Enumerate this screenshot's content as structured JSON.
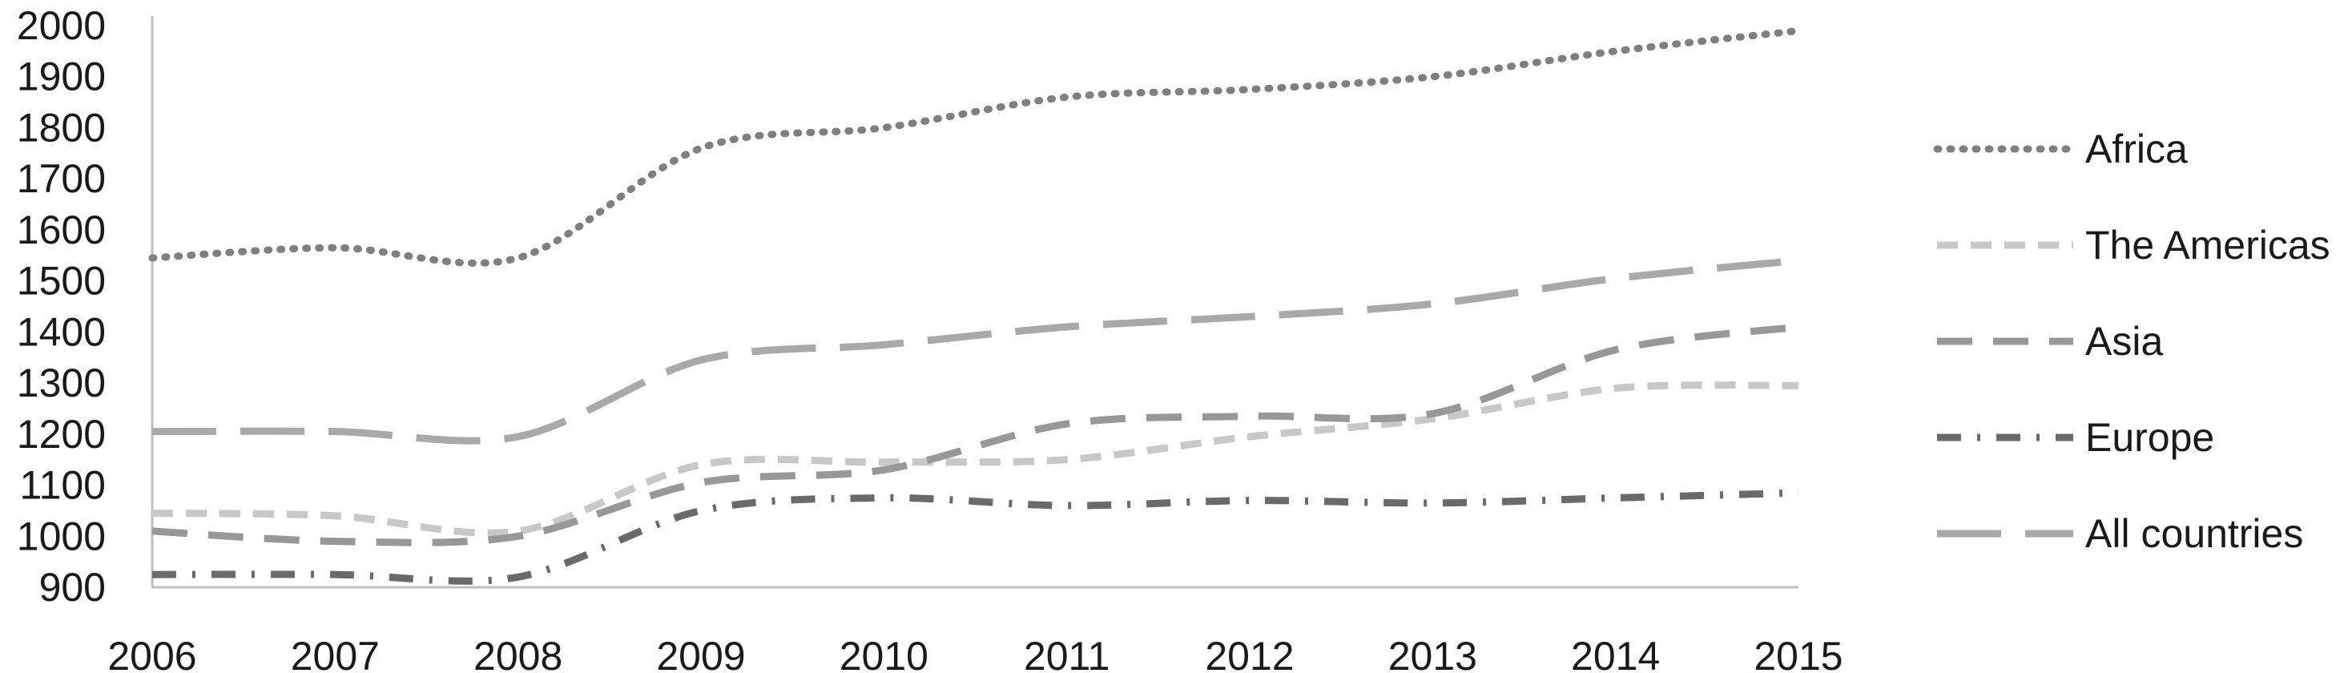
{
  "chart_data": {
    "type": "line",
    "title": "",
    "xlabel": "",
    "ylabel": "",
    "categories": [
      "2006",
      "2007",
      "2008",
      "2009",
      "2010",
      "2011",
      "2012",
      "2013",
      "2014",
      "2015"
    ],
    "ylim": [
      900,
      2000
    ],
    "yticks": [
      "900",
      "1000",
      "1100",
      "1200",
      "1300",
      "1400",
      "1500",
      "1600",
      "1700",
      "1800",
      "1900",
      "2000"
    ],
    "grid": false,
    "legend_position": "right",
    "series": [
      {
        "name": "Africa",
        "color": "#7f7f7f",
        "dash": "dotted",
        "values": [
          1545,
          1565,
          1545,
          1760,
          1800,
          1860,
          1875,
          1900,
          1950,
          1990
        ]
      },
      {
        "name": "The Americas",
        "color": "#c8c8c8",
        "dash": "short-dash",
        "values": [
          1045,
          1040,
          1010,
          1140,
          1145,
          1150,
          1195,
          1230,
          1290,
          1295
        ]
      },
      {
        "name": "Asia",
        "color": "#989898",
        "dash": "dash",
        "values": [
          1010,
          990,
          1000,
          1105,
          1130,
          1220,
          1235,
          1240,
          1365,
          1410
        ]
      },
      {
        "name": "Europe",
        "color": "#6a6a6a",
        "dash": "dash-dot",
        "values": [
          925,
          925,
          920,
          1050,
          1075,
          1060,
          1070,
          1065,
          1075,
          1085
        ]
      },
      {
        "name": "All countries",
        "color": "#a9a9a9",
        "dash": "long-dash",
        "values": [
          1205,
          1205,
          1195,
          1345,
          1375,
          1410,
          1430,
          1455,
          1505,
          1540
        ]
      }
    ]
  }
}
